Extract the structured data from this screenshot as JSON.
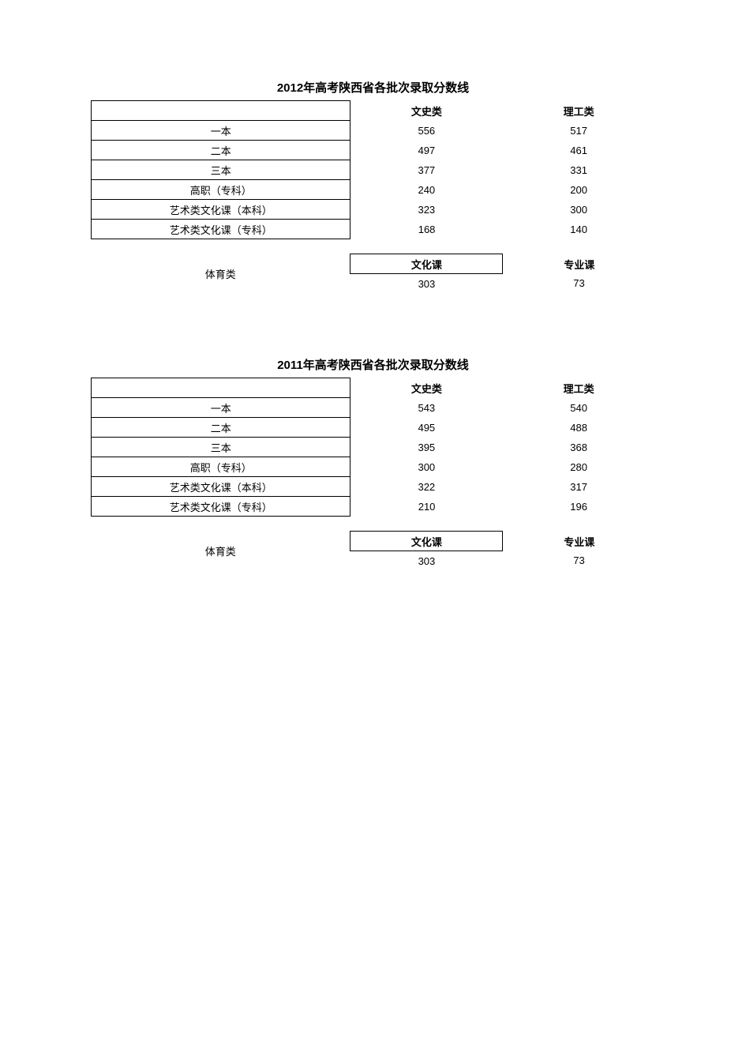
{
  "colors": {
    "background": "#ffffff",
    "text": "#000000",
    "border": "#000000"
  },
  "typography": {
    "title_fontsize_pt": 11,
    "body_fontsize_pt": 10,
    "title_fontweight": "bold",
    "header_fontweight": "bold"
  },
  "sections": [
    {
      "title": "2012年高考陕西省各批次录取分数线",
      "main_table": {
        "type": "table",
        "columns": [
          "",
          "文史类",
          "理工类"
        ],
        "rows": [
          [
            "一本",
            "556",
            "517"
          ],
          [
            "二本",
            "497",
            "461"
          ],
          [
            "三本",
            "377",
            "331"
          ],
          [
            "高职（专科）",
            "240",
            "200"
          ],
          [
            "艺术类文化课（本科）",
            "323",
            "300"
          ],
          [
            "艺术类文化课（专科）",
            "168",
            "140"
          ]
        ]
      },
      "sports_table": {
        "type": "table",
        "row_label": "体育类",
        "columns": [
          "文化课",
          "专业课"
        ],
        "values": [
          "303",
          "73"
        ]
      }
    },
    {
      "title": "2011年高考陕西省各批次录取分数线",
      "main_table": {
        "type": "table",
        "columns": [
          "",
          "文史类",
          "理工类"
        ],
        "rows": [
          [
            "一本",
            "543",
            "540"
          ],
          [
            "二本",
            "495",
            "488"
          ],
          [
            "三本",
            "395",
            "368"
          ],
          [
            "高职（专科）",
            "300",
            "280"
          ],
          [
            "艺术类文化课（本科）",
            "322",
            "317"
          ],
          [
            "艺术类文化课（专科）",
            "210",
            "196"
          ]
        ]
      },
      "sports_table": {
        "type": "table",
        "row_label": "体育类",
        "columns": [
          "文化课",
          "专业课"
        ],
        "values": [
          "303",
          "73"
        ]
      }
    }
  ]
}
